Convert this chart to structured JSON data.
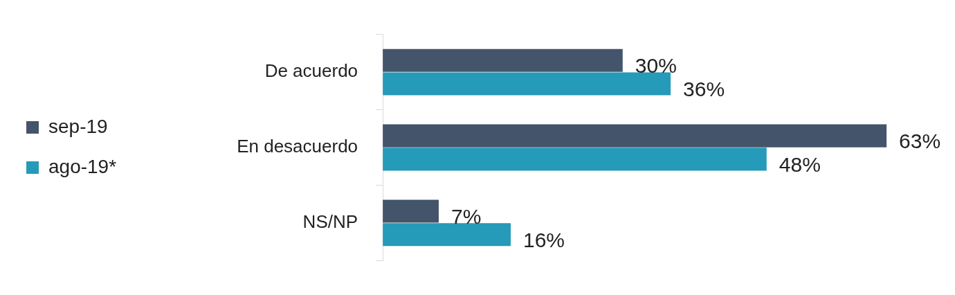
{
  "chart_data": {
    "type": "bar",
    "orientation": "horizontal",
    "categories": [
      "De acuerdo",
      "En desacuerdo",
      "NS/NP"
    ],
    "series": [
      {
        "name": "sep-19",
        "color": "#44546a",
        "values": [
          30,
          63,
          7
        ],
        "value_labels": [
          "30%",
          "63%",
          "7%"
        ]
      },
      {
        "name": "ago-19*",
        "color": "#259ab9",
        "values": [
          36,
          48,
          16
        ],
        "value_labels": [
          "36%",
          "48%",
          "16%"
        ]
      }
    ],
    "legend": "left"
  }
}
